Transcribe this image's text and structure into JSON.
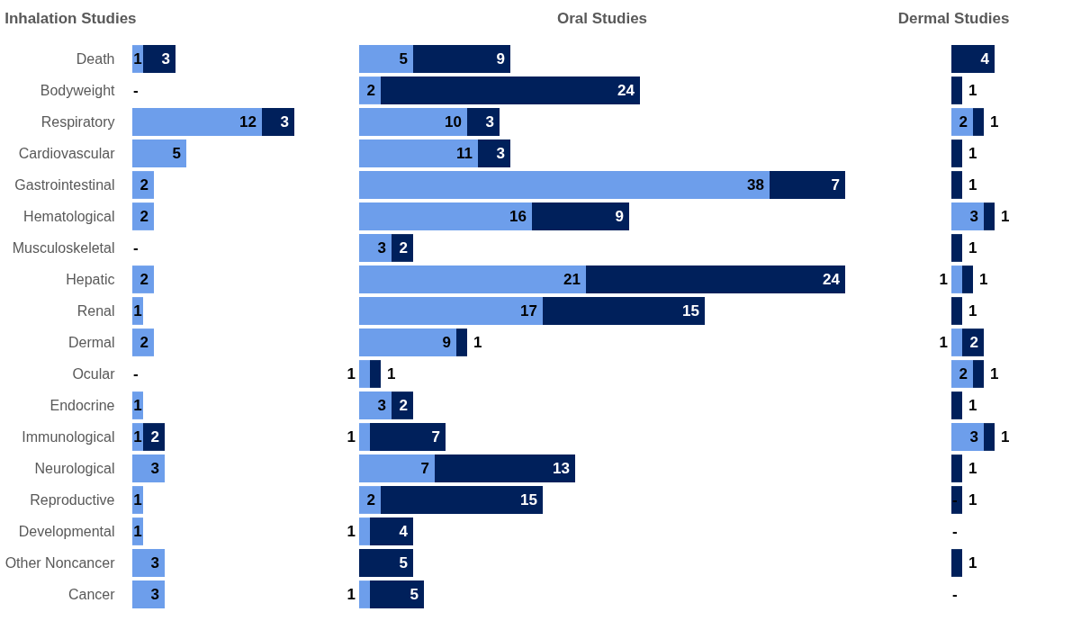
{
  "chart_data": [
    {
      "type": "bar",
      "orientation": "horizontal",
      "stacked": true,
      "title": "Inhalation Studies",
      "tick_labels": "y",
      "categories": [
        "Death",
        "Bodyweight",
        "Respiratory",
        "Cardiovascular",
        "Gastrointestinal",
        "Hematological",
        "Musculoskeletal",
        "Hepatic",
        "Renal",
        "Dermal",
        "Ocular",
        "Endocrine",
        "Immunological",
        "Neurological",
        "Reproductive",
        "Developmental",
        "Other Noncancer",
        "Cancer"
      ],
      "series": [
        {
          "color": "#6d9eeb",
          "values": [
            1,
            0,
            12,
            5,
            2,
            2,
            0,
            2,
            1,
            2,
            0,
            1,
            1,
            3,
            1,
            1,
            3,
            3
          ],
          "value_labels": [
            "1",
            "-",
            "12",
            "5",
            "2",
            "2",
            "-",
            "2",
            "1",
            "2",
            "-",
            "1",
            "1",
            "3",
            "1",
            "1",
            "3",
            "3"
          ]
        },
        {
          "color": "#00205b",
          "values": [
            3,
            null,
            3,
            null,
            null,
            null,
            null,
            null,
            null,
            null,
            null,
            null,
            2,
            null,
            null,
            null,
            null,
            null
          ],
          "value_labels": [
            "3",
            null,
            "3",
            null,
            null,
            null,
            null,
            null,
            null,
            null,
            null,
            null,
            "2",
            null,
            null,
            null,
            null,
            null
          ]
        }
      ]
    },
    {
      "type": "bar",
      "orientation": "horizontal",
      "stacked": true,
      "title": "Oral Studies",
      "tick_labels": false,
      "series": [
        {
          "color": "#6d9eeb",
          "values": [
            5,
            2,
            10,
            11,
            38,
            16,
            3,
            21,
            17,
            9,
            1,
            3,
            1,
            7,
            2,
            1,
            null,
            1
          ],
          "value_labels": [
            "5",
            "2",
            "10",
            "11",
            "38",
            "16",
            "3",
            "21",
            "17",
            "9",
            "1",
            "3",
            "1",
            "7",
            "2",
            "1",
            null,
            "1"
          ]
        },
        {
          "color": "#00205b",
          "values": [
            9,
            24,
            3,
            3,
            7,
            9,
            2,
            24,
            15,
            1,
            1,
            2,
            7,
            13,
            15,
            4,
            5,
            5
          ],
          "value_labels": [
            "9",
            "24",
            "3",
            "3",
            "7",
            "9",
            "2",
            "24",
            "15",
            "1",
            "1",
            "2",
            "7",
            "13",
            "15",
            "4",
            "5",
            "5"
          ]
        }
      ]
    },
    {
      "type": "bar",
      "orientation": "horizontal",
      "stacked": true,
      "title": "Dermal Studies",
      "tick_labels": false,
      "series": [
        {
          "color": "#6d9eeb",
          "values": [
            null,
            null,
            2,
            null,
            null,
            3,
            null,
            1,
            null,
            1,
            2,
            null,
            3,
            null,
            0,
            0,
            null,
            0
          ],
          "value_labels": [
            null,
            null,
            "2",
            null,
            null,
            "3",
            null,
            "1",
            null,
            "1",
            "2",
            null,
            "3",
            null,
            "-",
            "-",
            null,
            "-"
          ]
        },
        {
          "color": "#00205b",
          "values": [
            4,
            1,
            1,
            1,
            1,
            1,
            1,
            1,
            1,
            2,
            1,
            1,
            1,
            1,
            1,
            null,
            1,
            null
          ],
          "value_labels": [
            "4",
            "1",
            "1",
            "1",
            "1",
            "1",
            "1",
            "1",
            "1",
            "2",
            "1",
            "1",
            "1",
            "1",
            "1",
            null,
            "1",
            null
          ]
        }
      ]
    }
  ]
}
